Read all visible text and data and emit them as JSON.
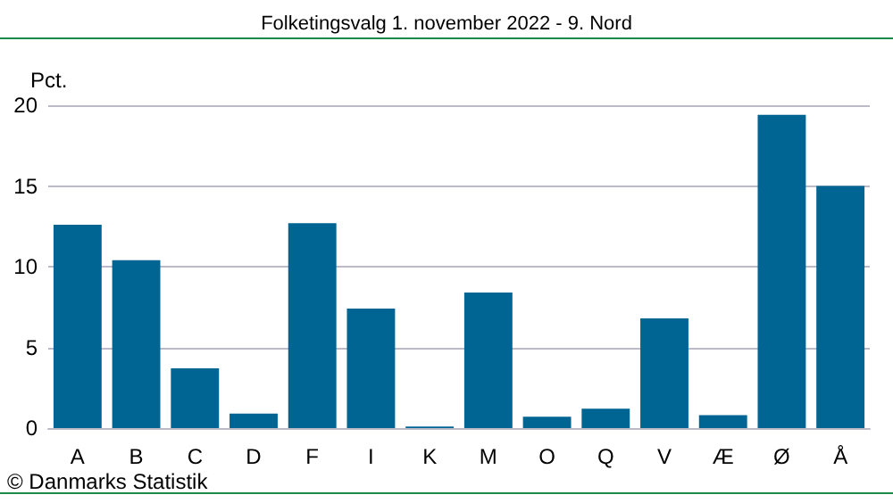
{
  "chart_data": {
    "type": "bar",
    "title": "Folketingsvalg 1. november 2022 - 9. Nord",
    "ylabel": "Pct.",
    "categories": [
      "A",
      "B",
      "C",
      "D",
      "F",
      "I",
      "K",
      "M",
      "O",
      "Q",
      "V",
      "Æ",
      "Ø",
      "Å"
    ],
    "values": [
      12.6,
      10.4,
      3.7,
      0.9,
      12.7,
      7.4,
      0.1,
      8.4,
      0.7,
      1.2,
      6.8,
      0.8,
      19.4,
      15.0
    ],
    "color": "#006593",
    "ylim": [
      0,
      20
    ],
    "yticks": [
      0,
      5,
      10,
      15,
      20
    ],
    "grid": "y",
    "annotations": [
      "© Danmarks Statistik"
    ]
  }
}
